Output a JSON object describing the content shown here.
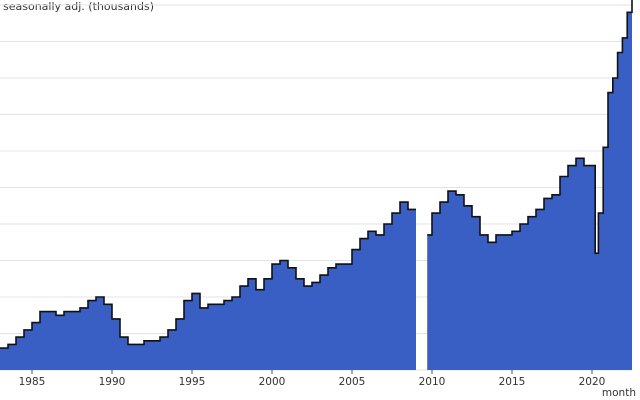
{
  "chart_data": {
    "type": "area",
    "title": "",
    "ylabel": ", seasonally adj. (thousands)",
    "xlabel": "month",
    "x_ticks": [
      "1985",
      "1990",
      "1995",
      "2000",
      "2005",
      "2010",
      "2015",
      "2020"
    ],
    "xlim": [
      1983.0,
      2022.5
    ],
    "ylim": [
      0,
      10
    ],
    "grid": "horizontal",
    "fill_color": "#3a5fc4",
    "line_color": "#111111",
    "series": [
      {
        "segments": [
          {
            "x": [
              1983.0,
              1983.5,
              1984.0,
              1984.5,
              1985.0,
              1985.5,
              1986.0,
              1986.5,
              1987.0,
              1987.5,
              1988.0,
              1988.5,
              1989.0,
              1989.5,
              1990.0,
              1990.5,
              1991.0,
              1991.5,
              1992.0,
              1992.5,
              1993.0,
              1993.5,
              1994.0,
              1994.5,
              1995.0,
              1995.5,
              1996.0,
              1996.5,
              1997.0,
              1997.5,
              1998.0,
              1998.5,
              1999.0,
              1999.5,
              2000.0,
              2000.5,
              2001.0,
              2001.5,
              2002.0,
              2002.5,
              2003.0,
              2003.5,
              2004.0,
              2004.5,
              2005.0,
              2005.5,
              2006.0,
              2006.5,
              2007.0,
              2007.5,
              2008.0,
              2008.5
            ],
            "y": [
              0.6,
              0.7,
              0.9,
              1.1,
              1.3,
              1.6,
              1.6,
              1.5,
              1.6,
              1.6,
              1.7,
              1.9,
              2.0,
              1.8,
              1.4,
              0.9,
              0.7,
              0.7,
              0.8,
              0.8,
              0.9,
              1.1,
              1.4,
              1.9,
              2.1,
              1.7,
              1.8,
              1.8,
              1.9,
              2.0,
              2.3,
              2.5,
              2.2,
              2.5,
              2.9,
              3.0,
              2.8,
              2.5,
              2.3,
              2.4,
              2.6,
              2.8,
              2.9,
              2.9,
              3.3,
              3.6,
              3.8,
              3.7,
              4.0,
              4.3,
              4.6,
              4.4
            ]
          },
          {
            "x": [
              2009.7,
              2010.0,
              2010.5,
              2011.0,
              2011.5,
              2012.0,
              2012.5,
              2013.0,
              2013.5,
              2014.0,
              2014.5,
              2015.0,
              2015.5,
              2016.0,
              2016.5,
              2017.0,
              2017.5,
              2018.0,
              2018.5,
              2019.0,
              2019.5,
              2020.0,
              2020.2,
              2020.4,
              2020.7,
              2021.0,
              2021.3,
              2021.6,
              2021.9,
              2022.2,
              2022.5
            ],
            "y": [
              3.7,
              4.3,
              4.6,
              4.9,
              4.8,
              4.5,
              4.2,
              3.7,
              3.5,
              3.7,
              3.7,
              3.8,
              4.0,
              4.2,
              4.4,
              4.7,
              4.8,
              5.3,
              5.6,
              5.8,
              5.6,
              5.6,
              3.2,
              4.3,
              6.1,
              7.6,
              8.0,
              8.7,
              9.1,
              9.8,
              10.5
            ]
          }
        ]
      }
    ]
  }
}
